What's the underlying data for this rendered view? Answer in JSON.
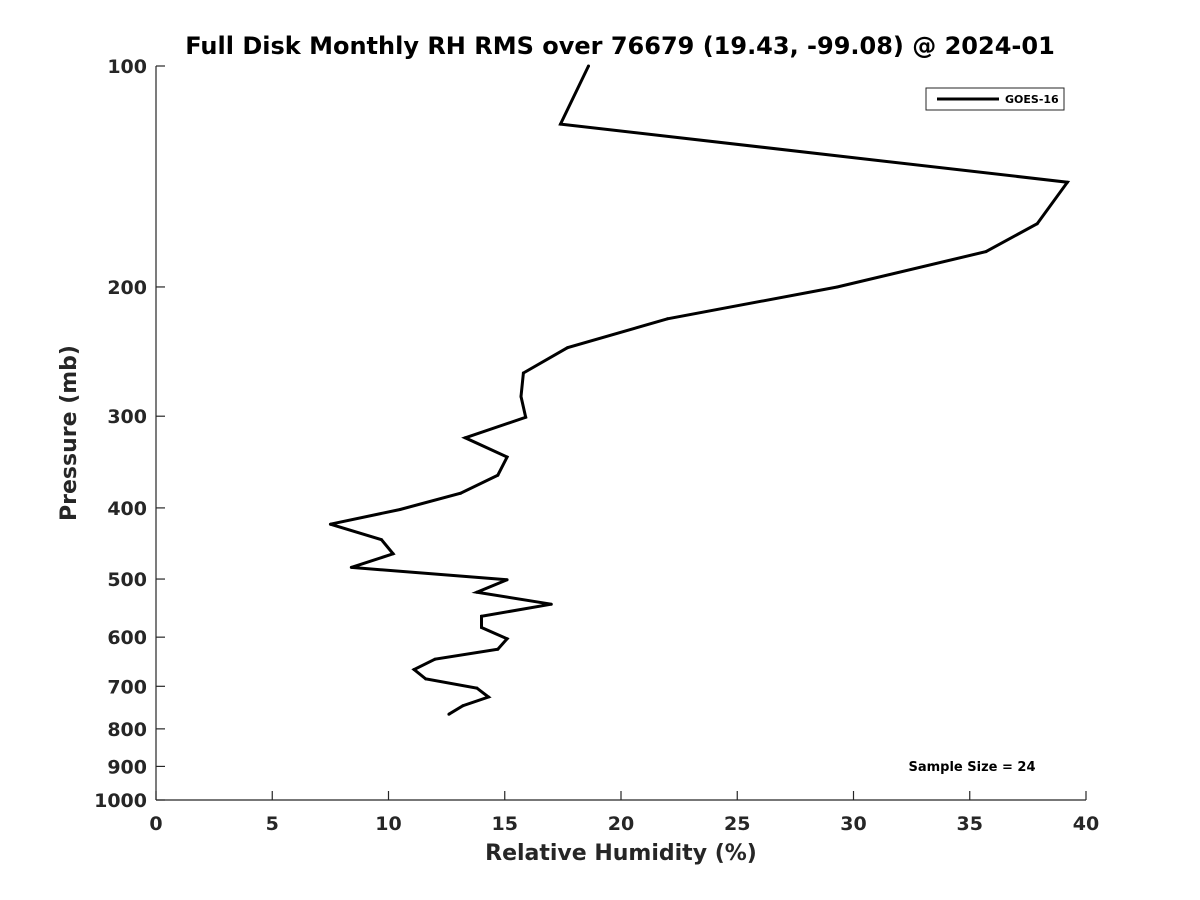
{
  "chart_data": {
    "type": "line",
    "title": "Full Disk Monthly RH RMS over 76679 (19.43, -99.08) @ 2024-01",
    "xlabel": "Relative Humidity (%)",
    "ylabel": "Pressure (mb)",
    "xlim": [
      0,
      40
    ],
    "ylim": [
      100,
      1000
    ],
    "y_scale": "log",
    "y_direction": "reversed",
    "grid": false,
    "x_ticks": [
      0,
      5,
      10,
      15,
      20,
      25,
      30,
      35,
      40
    ],
    "y_ticks": [
      100,
      200,
      300,
      400,
      500,
      600,
      700,
      800,
      900,
      1000
    ],
    "legend": {
      "position": "top-right",
      "entries": [
        "GOES-16"
      ]
    },
    "annotations": [
      "Sample Size = 24"
    ],
    "series": [
      {
        "name": "GOES-16",
        "color": "#000000",
        "points": [
          {
            "rh": 18.6,
            "p": 100
          },
          {
            "rh": 17.4,
            "p": 120
          },
          {
            "rh": 39.2,
            "p": 144
          },
          {
            "rh": 37.9,
            "p": 164
          },
          {
            "rh": 35.7,
            "p": 179
          },
          {
            "rh": 29.3,
            "p": 200
          },
          {
            "rh": 22.0,
            "p": 221
          },
          {
            "rh": 17.7,
            "p": 242
          },
          {
            "rh": 15.8,
            "p": 262
          },
          {
            "rh": 15.7,
            "p": 282
          },
          {
            "rh": 15.9,
            "p": 301
          },
          {
            "rh": 13.3,
            "p": 321
          },
          {
            "rh": 15.1,
            "p": 341
          },
          {
            "rh": 14.7,
            "p": 361
          },
          {
            "rh": 13.1,
            "p": 382
          },
          {
            "rh": 10.5,
            "p": 402
          },
          {
            "rh": 7.5,
            "p": 421
          },
          {
            "rh": 9.7,
            "p": 442
          },
          {
            "rh": 10.2,
            "p": 462
          },
          {
            "rh": 8.4,
            "p": 482
          },
          {
            "rh": 15.1,
            "p": 501
          },
          {
            "rh": 13.8,
            "p": 521
          },
          {
            "rh": 17.0,
            "p": 541
          },
          {
            "rh": 14.0,
            "p": 562
          },
          {
            "rh": 14.0,
            "p": 582
          },
          {
            "rh": 15.1,
            "p": 603
          },
          {
            "rh": 14.7,
            "p": 623
          },
          {
            "rh": 12.0,
            "p": 643
          },
          {
            "rh": 11.1,
            "p": 664
          },
          {
            "rh": 11.6,
            "p": 684
          },
          {
            "rh": 13.8,
            "p": 704
          },
          {
            "rh": 14.3,
            "p": 724
          },
          {
            "rh": 13.2,
            "p": 744
          },
          {
            "rh": 12.6,
            "p": 764
          }
        ]
      }
    ]
  }
}
